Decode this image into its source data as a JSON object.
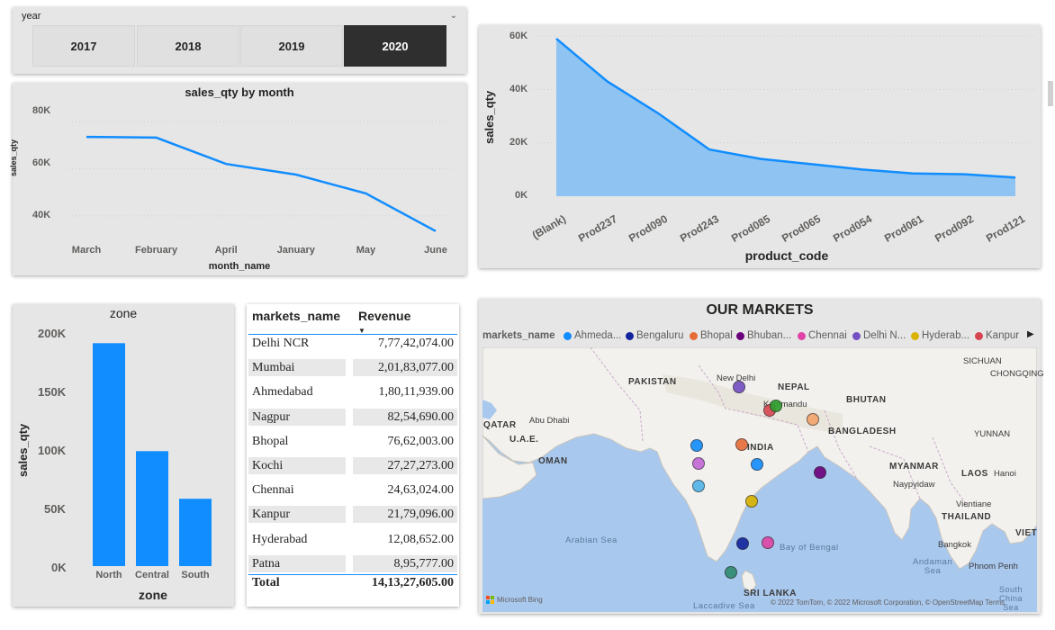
{
  "slicer": {
    "title": "year",
    "years": [
      "2017",
      "2018",
      "2019",
      "2020"
    ],
    "selected": "2020"
  },
  "month_chart": {
    "chart_data": {
      "type": "line",
      "title": "sales_qty by month",
      "xlabel": "month_name",
      "ylabel": "sales_qty",
      "categories": [
        "March",
        "February",
        "April",
        "January",
        "May",
        "June"
      ],
      "values": [
        73500,
        73200,
        62000,
        57500,
        49500,
        33500
      ],
      "ylim": [
        30000,
        85000
      ],
      "yticks": [
        "80K",
        "60K",
        "40K"
      ],
      "line_color": "#118dff"
    }
  },
  "product_chart": {
    "chart_data": {
      "type": "area",
      "xlabel": "product_code",
      "ylabel": "sales_qty",
      "categories": [
        "(Blank)",
        "Prod237",
        "Prod090",
        "Prod243",
        "Prod085",
        "Prod065",
        "Prod054",
        "Prod061",
        "Prod092",
        "Prod121"
      ],
      "values": [
        59000,
        43000,
        31000,
        17500,
        14000,
        12000,
        10000,
        8500,
        8200,
        7000
      ],
      "ylim": [
        0,
        60000
      ],
      "yticks": [
        "60K",
        "40K",
        "20K",
        "0K"
      ],
      "line_color": "#118dff",
      "fill_color": "#8ec3f2"
    }
  },
  "zone_chart": {
    "chart_data": {
      "type": "bar",
      "title": "zone",
      "xlabel": "zone",
      "ylabel": "sales_qty",
      "categories": [
        "North",
        "Central",
        "South"
      ],
      "values": [
        192000,
        99000,
        58000
      ],
      "ylim": [
        0,
        200000
      ],
      "yticks": [
        "200K",
        "150K",
        "100K",
        "50K",
        "0K"
      ],
      "bar_color": "#118dff"
    }
  },
  "table": {
    "col_market": "markets_name",
    "col_revenue": "Revenue",
    "rows": [
      {
        "market": "Delhi NCR",
        "revenue": "7,77,42,074.00"
      },
      {
        "market": "Mumbai",
        "revenue": "2,01,83,077.00"
      },
      {
        "market": "Ahmedabad",
        "revenue": "1,80,11,939.00"
      },
      {
        "market": "Nagpur",
        "revenue": "82,54,690.00"
      },
      {
        "market": "Bhopal",
        "revenue": "76,62,003.00"
      },
      {
        "market": "Kochi",
        "revenue": "27,27,273.00"
      },
      {
        "market": "Chennai",
        "revenue": "24,63,024.00"
      },
      {
        "market": "Kanpur",
        "revenue": "21,79,096.00"
      },
      {
        "market": "Hyderabad",
        "revenue": "12,08,652.00"
      },
      {
        "market": "Patna",
        "revenue": "8,95,777.00"
      }
    ],
    "total_label": "Total",
    "total_value": "14,13,27,605.00"
  },
  "map": {
    "title": "OUR MARKETS",
    "legend_title": "markets_name",
    "legend": [
      {
        "label": "Ahmeda...",
        "color": "#118dff"
      },
      {
        "label": "Bengaluru",
        "color": "#12239e"
      },
      {
        "label": "Bhopal",
        "color": "#e66c37"
      },
      {
        "label": "Bhuban...",
        "color": "#6b007b"
      },
      {
        "label": "Chennai",
        "color": "#e044a7"
      },
      {
        "label": "Delhi N...",
        "color": "#744ec2"
      },
      {
        "label": "Hyderab...",
        "color": "#d9b300"
      },
      {
        "label": "Kanpur",
        "color": "#d64550"
      }
    ],
    "labels": {
      "sichuan": "SICHUAN",
      "chongqing": "CHONGQING",
      "pakistan": "PAKISTAN",
      "new_delhi": "New Delhi",
      "nepal": "NEPAL",
      "kathmandu": "Kathmandu",
      "bhutan": "BHUTAN",
      "qatar": "QATAR",
      "abu_dhabi": "Abu Dhabi",
      "uae": "U.A.E.",
      "bangladesh": "BANGLADESH",
      "yunnan": "YUNNAN",
      "india": "INDIA",
      "oman": "OMAN",
      "myanmar": "MYANMAR",
      "laos": "LAOS",
      "hanoi": "Hanoi",
      "naypyidaw": "Naypyidaw",
      "vientiane": "Vientiane",
      "thailand": "THAILAND",
      "viet": "VIET",
      "arabian_sea": "Arabian Sea",
      "bay_of_bengal": "Bay of Bengal",
      "bangkok": "Bangkok",
      "andaman_sea": "Andaman\nSea",
      "phnom_penh": "Phnom Penh",
      "sri_lanka": "SRI LANKA",
      "laccadive_sea": "Laccadive Sea",
      "south_china_sea": "South\nChina\nSea"
    },
    "attribution": "© 2022 TomTom, © 2022 Microsoft Corporation, © OpenStreetMap  Terms",
    "bing": "Microsoft Bing",
    "bubble_colors": [
      "#744ec2",
      "#d64550",
      "#2ca02c",
      "#f2a36b",
      "#118dff",
      "#e66c37",
      "#c267d6",
      "#118dff",
      "#6b007b",
      "#4fb3e8",
      "#d9b300",
      "#12239e",
      "#e044a7",
      "#2e8b6e"
    ]
  }
}
